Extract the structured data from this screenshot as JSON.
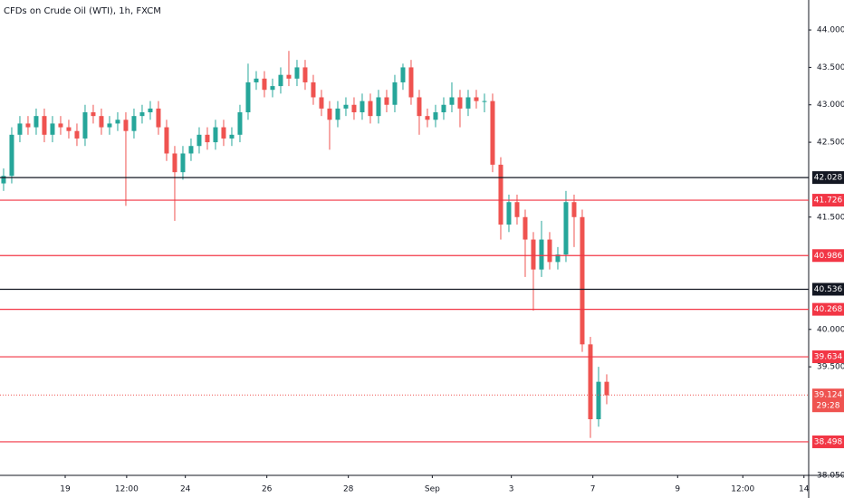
{
  "chart_data": {
    "type": "candlestick",
    "title": "CFDs on Crude Oil (WTI), 1h, FXCM",
    "up_color": "#26a69a",
    "down_color": "#ef5350",
    "open": [
      41.95,
      42.05,
      42.6,
      42.75,
      42.7,
      42.85,
      42.6,
      42.75,
      42.7,
      42.65,
      42.55,
      42.9,
      42.85,
      42.7,
      42.75,
      42.8,
      42.65,
      42.85,
      42.9,
      42.95,
      42.7,
      42.35,
      42.1,
      42.35,
      42.45,
      42.6,
      42.5,
      42.7,
      42.55,
      42.6,
      42.9,
      43.3,
      43.35,
      43.2,
      43.25,
      43.4,
      43.35,
      43.5,
      43.3,
      43.1,
      42.95,
      42.8,
      42.95,
      43.0,
      42.9,
      43.05,
      42.85,
      43.1,
      43.0,
      43.3,
      43.5,
      43.1,
      42.85,
      42.8,
      42.9,
      43.0,
      43.1,
      42.95,
      43.1,
      43.05,
      43.05,
      42.2,
      41.4,
      41.7,
      41.5,
      41.2,
      40.8,
      41.2,
      40.9,
      41.0,
      41.7,
      41.5,
      39.8,
      38.8,
      39.3
    ],
    "high": [
      42.15,
      42.7,
      42.85,
      42.85,
      42.95,
      42.95,
      42.85,
      42.85,
      42.8,
      42.75,
      43.0,
      43.0,
      42.95,
      42.85,
      42.9,
      42.9,
      42.95,
      43.0,
      43.05,
      43.05,
      42.8,
      42.45,
      42.45,
      42.55,
      42.7,
      42.7,
      42.8,
      42.8,
      42.7,
      43.0,
      43.55,
      43.45,
      43.45,
      43.35,
      43.5,
      43.72,
      43.6,
      43.6,
      43.4,
      43.2,
      43.05,
      43.05,
      43.1,
      43.1,
      43.15,
      43.15,
      43.2,
      43.2,
      43.4,
      43.55,
      43.6,
      43.2,
      42.95,
      43.0,
      43.1,
      43.3,
      43.2,
      43.2,
      43.2,
      43.15,
      43.15,
      42.3,
      41.8,
      41.8,
      41.6,
      41.3,
      41.45,
      41.3,
      41.1,
      41.85,
      41.8,
      41.6,
      39.9,
      39.5,
      39.4
    ],
    "low": [
      41.85,
      41.95,
      42.5,
      42.6,
      42.6,
      42.5,
      42.5,
      42.6,
      42.55,
      42.45,
      42.45,
      42.75,
      42.6,
      42.6,
      42.65,
      41.65,
      42.55,
      42.75,
      42.8,
      42.6,
      42.25,
      41.45,
      42.0,
      42.25,
      42.35,
      42.4,
      42.4,
      42.45,
      42.45,
      42.5,
      42.8,
      43.2,
      43.1,
      43.1,
      43.15,
      43.25,
      43.25,
      43.2,
      43.0,
      42.85,
      42.4,
      42.7,
      42.85,
      42.8,
      42.8,
      42.75,
      42.75,
      42.9,
      42.9,
      43.2,
      43.0,
      42.6,
      42.7,
      42.7,
      42.8,
      42.9,
      42.7,
      42.85,
      42.95,
      42.9,
      42.1,
      41.2,
      41.3,
      41.4,
      40.7,
      40.25,
      40.7,
      40.8,
      40.8,
      40.9,
      41.1,
      39.7,
      38.55,
      38.7,
      39.0
    ],
    "close": [
      42.05,
      42.6,
      42.75,
      42.7,
      42.85,
      42.6,
      42.75,
      42.7,
      42.65,
      42.55,
      42.9,
      42.85,
      42.7,
      42.75,
      42.8,
      42.65,
      42.85,
      42.9,
      42.95,
      42.7,
      42.35,
      42.1,
      42.35,
      42.45,
      42.6,
      42.5,
      42.7,
      42.55,
      42.6,
      42.9,
      43.3,
      43.35,
      43.2,
      43.25,
      43.4,
      43.35,
      43.5,
      43.3,
      43.1,
      42.95,
      42.8,
      42.95,
      43.0,
      42.9,
      43.05,
      42.85,
      43.1,
      43.0,
      43.3,
      43.5,
      43.1,
      42.85,
      42.8,
      42.9,
      43.0,
      43.1,
      42.95,
      43.1,
      43.05,
      43.05,
      42.2,
      41.4,
      41.7,
      41.5,
      41.2,
      40.8,
      41.2,
      40.9,
      41.0,
      41.7,
      41.5,
      39.8,
      38.8,
      39.3,
      39.12
    ],
    "xlim": [
      -0.44,
      98.78
    ],
    "xticks": [
      {
        "value": 7.56,
        "label": "19"
      },
      {
        "value": 15.1,
        "label": "12:00"
      },
      {
        "value": 22.3,
        "label": "24"
      },
      {
        "value": 32.3,
        "label": "26"
      },
      {
        "value": 42.3,
        "label": "28"
      },
      {
        "value": 52.6,
        "label": "Sep"
      },
      {
        "value": 62.3,
        "label": "3"
      },
      {
        "value": 72.3,
        "label": "7"
      },
      {
        "value": 82.7,
        "label": "9"
      },
      {
        "value": 90.7,
        "label": "12:00"
      },
      {
        "value": 98.2,
        "label": "14"
      }
    ],
    "ylim": [
      38.05,
      44.4
    ],
    "yticks": [
      {
        "value": 44,
        "label": "44.000"
      },
      {
        "value": 43.5,
        "label": "43.500"
      },
      {
        "value": 43,
        "label": "43.000"
      },
      {
        "value": 42.5,
        "label": "42.500"
      },
      {
        "value": 41.5,
        "label": "41.500"
      },
      {
        "value": 40,
        "label": "40.000"
      },
      {
        "value": 39.5,
        "label": "39.500"
      },
      {
        "value": 38.05,
        "label": "38.050"
      }
    ],
    "levels": [
      {
        "value": 42.028,
        "color": "#131722"
      },
      {
        "value": 41.726,
        "color": "#f23645"
      },
      {
        "value": 40.986,
        "color": "#f23645"
      },
      {
        "value": 40.536,
        "color": "#131722"
      },
      {
        "value": 40.268,
        "color": "#f23645"
      },
      {
        "value": 39.634,
        "color": "#f23645"
      },
      {
        "value": 38.498,
        "color": "#f23645"
      }
    ],
    "last_price": 39.124,
    "countdown": "29:28"
  }
}
